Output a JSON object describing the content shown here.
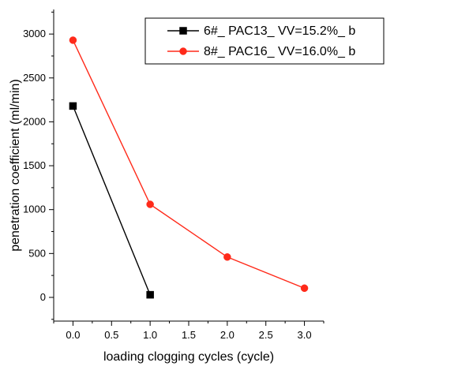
{
  "chart_data": {
    "type": "line",
    "xlabel": "loading clogging cycles (cycle)",
    "ylabel": "penetration coefficient (ml/min)",
    "xlim": [
      -0.25,
      3.25
    ],
    "ylim": [
      -270,
      3280
    ],
    "x_ticks": [
      "0.0",
      "0.5",
      "1.0",
      "1.5",
      "2.0",
      "2.5",
      "3.0"
    ],
    "y_ticks": [
      "0",
      "500",
      "1000",
      "1500",
      "2000",
      "2500",
      "3000"
    ],
    "grid": false,
    "legend_position": "top-right",
    "series": [
      {
        "name": "6#_ PAC13_ VV=15.2%_ b",
        "color": "#000000",
        "marker": "square",
        "x": [
          0,
          1
        ],
        "y": [
          2180,
          30
        ]
      },
      {
        "name": "8#_ PAC16_ VV=16.0%_ b",
        "color": "#ff2a1a",
        "marker": "circle",
        "x": [
          0,
          1,
          2,
          3
        ],
        "y": [
          2930,
          1060,
          460,
          105
        ]
      }
    ]
  }
}
